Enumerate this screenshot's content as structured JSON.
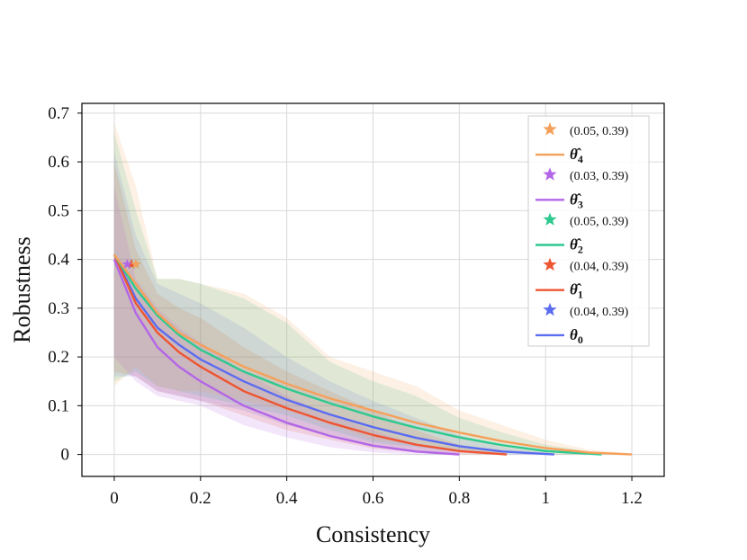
{
  "chart_data": {
    "type": "line",
    "title": "",
    "xlabel": "Consistency",
    "ylabel": "Robustness",
    "xlim": [
      -0.075,
      1.275
    ],
    "ylim": [
      -0.045,
      0.72
    ],
    "xticks": [
      0,
      0.2,
      0.4,
      0.6,
      0.8,
      1,
      1.2
    ],
    "xtick_labels": [
      "0",
      "0.2",
      "0.4",
      "0.6",
      "0.8",
      "1",
      "1.2"
    ],
    "yticks": [
      0,
      0.1,
      0.2,
      0.3,
      0.4,
      0.5,
      0.6,
      0.7
    ],
    "ytick_labels": [
      "0",
      "0.1",
      "0.2",
      "0.3",
      "0.4",
      "0.5",
      "0.6",
      "0.7"
    ],
    "grid": true,
    "legend_position": "top-right",
    "series": [
      {
        "name": "θ̂4",
        "legend_base": "θ̂",
        "legend_sub": "4",
        "color": "#f5a05a",
        "x": [
          0,
          0.05,
          0.1,
          0.15,
          0.2,
          0.3,
          0.4,
          0.5,
          0.6,
          0.7,
          0.8,
          0.9,
          1.0,
          1.1,
          1.2
        ],
        "y": [
          0.41,
          0.35,
          0.29,
          0.25,
          0.225,
          0.18,
          0.145,
          0.115,
          0.09,
          0.065,
          0.045,
          0.027,
          0.013,
          0.004,
          0.0
        ],
        "band_upper": [
          0.68,
          0.55,
          0.36,
          0.36,
          0.35,
          0.33,
          0.28,
          0.2,
          0.17,
          0.14,
          0.09,
          0.06,
          0.03,
          0.01,
          0.002
        ],
        "band_lower": [
          0.14,
          0.18,
          0.14,
          0.13,
          0.13,
          0.11,
          0.09,
          0.06,
          0.03,
          0.02,
          0.01,
          0.003,
          0.0,
          0.0,
          0.0
        ],
        "marker_label": "(0.05, 0.39)",
        "marker": {
          "x": 0.05,
          "y": 0.39
        }
      },
      {
        "name": "θ̂3",
        "legend_base": "θ̂",
        "legend_sub": "3",
        "color": "#b366e6",
        "x": [
          0,
          0.05,
          0.1,
          0.15,
          0.2,
          0.3,
          0.4,
          0.5,
          0.6,
          0.7,
          0.8
        ],
        "y": [
          0.4,
          0.29,
          0.22,
          0.18,
          0.15,
          0.1,
          0.065,
          0.038,
          0.018,
          0.006,
          0.0
        ],
        "band_upper": [
          0.55,
          0.36,
          0.3,
          0.26,
          0.23,
          0.17,
          0.12,
          0.08,
          0.05,
          0.02,
          0.004
        ],
        "band_lower": [
          0.2,
          0.15,
          0.12,
          0.11,
          0.1,
          0.06,
          0.035,
          0.015,
          0.004,
          0.0,
          0.0
        ],
        "marker_label": "(0.03, 0.39)",
        "marker": {
          "x": 0.03,
          "y": 0.39
        }
      },
      {
        "name": "θ̂2",
        "legend_base": "θ̂",
        "legend_sub": "2",
        "color": "#2ec98f",
        "x": [
          0,
          0.05,
          0.1,
          0.15,
          0.2,
          0.3,
          0.4,
          0.5,
          0.6,
          0.7,
          0.8,
          0.9,
          1.0,
          1.13
        ],
        "y": [
          0.41,
          0.34,
          0.285,
          0.245,
          0.215,
          0.17,
          0.135,
          0.105,
          0.078,
          0.055,
          0.035,
          0.019,
          0.007,
          0.0
        ],
        "band_upper": [
          0.66,
          0.5,
          0.36,
          0.36,
          0.35,
          0.32,
          0.27,
          0.19,
          0.15,
          0.12,
          0.075,
          0.045,
          0.02,
          0.002
        ],
        "band_lower": [
          0.15,
          0.17,
          0.14,
          0.13,
          0.12,
          0.1,
          0.08,
          0.05,
          0.025,
          0.015,
          0.006,
          0.002,
          0.0,
          0.0
        ],
        "marker_label": "(0.05, 0.39)",
        "marker": {
          "x": 0.05,
          "y": 0.39
        }
      },
      {
        "name": "θ̂1",
        "legend_base": "θ̂",
        "legend_sub": "1",
        "color": "#ee5533",
        "x": [
          0,
          0.05,
          0.1,
          0.15,
          0.2,
          0.3,
          0.4,
          0.5,
          0.6,
          0.7,
          0.8,
          0.91
        ],
        "y": [
          0.41,
          0.31,
          0.25,
          0.21,
          0.18,
          0.13,
          0.095,
          0.065,
          0.04,
          0.02,
          0.007,
          0.0
        ],
        "band_upper": [
          0.6,
          0.42,
          0.33,
          0.3,
          0.28,
          0.22,
          0.17,
          0.13,
          0.09,
          0.05,
          0.02,
          0.002
        ],
        "band_lower": [
          0.17,
          0.16,
          0.13,
          0.12,
          0.11,
          0.08,
          0.05,
          0.03,
          0.012,
          0.004,
          0.0,
          0.0
        ],
        "marker_label": "(0.04, 0.39)",
        "marker": {
          "x": 0.04,
          "y": 0.39
        }
      },
      {
        "name": "θ0",
        "legend_base": "θ",
        "legend_sub": "0",
        "color": "#5b6cf0",
        "x": [
          0,
          0.05,
          0.1,
          0.15,
          0.2,
          0.3,
          0.4,
          0.5,
          0.6,
          0.7,
          0.8,
          0.9,
          1.02
        ],
        "y": [
          0.41,
          0.32,
          0.26,
          0.225,
          0.195,
          0.15,
          0.112,
          0.082,
          0.056,
          0.034,
          0.017,
          0.006,
          0.0
        ],
        "band_upper": [
          0.62,
          0.45,
          0.35,
          0.33,
          0.31,
          0.26,
          0.2,
          0.15,
          0.11,
          0.075,
          0.04,
          0.015,
          0.002
        ],
        "band_lower": [
          0.16,
          0.16,
          0.13,
          0.12,
          0.11,
          0.09,
          0.06,
          0.04,
          0.02,
          0.008,
          0.002,
          0.0,
          0.0
        ],
        "marker_label": "(0.04, 0.39)",
        "marker": {
          "x": 0.04,
          "y": 0.39
        }
      }
    ]
  }
}
